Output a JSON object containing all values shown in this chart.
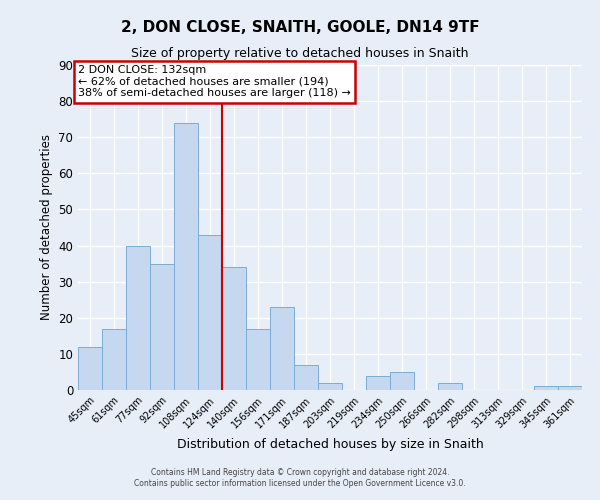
{
  "title": "2, DON CLOSE, SNAITH, GOOLE, DN14 9TF",
  "subtitle": "Size of property relative to detached houses in Snaith",
  "xlabel": "Distribution of detached houses by size in Snaith",
  "ylabel": "Number of detached properties",
  "categories": [
    "45sqm",
    "61sqm",
    "77sqm",
    "92sqm",
    "108sqm",
    "124sqm",
    "140sqm",
    "156sqm",
    "171sqm",
    "187sqm",
    "203sqm",
    "219sqm",
    "234sqm",
    "250sqm",
    "266sqm",
    "282sqm",
    "298sqm",
    "313sqm",
    "329sqm",
    "345sqm",
    "361sqm"
  ],
  "values": [
    12,
    17,
    40,
    35,
    74,
    43,
    34,
    17,
    23,
    7,
    2,
    0,
    4,
    5,
    0,
    2,
    0,
    0,
    0,
    1,
    1
  ],
  "bar_color": "#c5d8f0",
  "bar_edge_color": "#7aadd4",
  "bg_color": "#e8eef8",
  "grid_color": "#ffffff",
  "vline_color": "#cc0000",
  "annotation_title": "2 DON CLOSE: 132sqm",
  "annotation_line1": "← 62% of detached houses are smaller (194)",
  "annotation_line2": "38% of semi-detached houses are larger (118) →",
  "annotation_box_color": "#cc0000",
  "ylim": [
    0,
    90
  ],
  "yticks": [
    0,
    10,
    20,
    30,
    40,
    50,
    60,
    70,
    80,
    90
  ],
  "footer1": "Contains HM Land Registry data © Crown copyright and database right 2024.",
  "footer2": "Contains public sector information licensed under the Open Government Licence v3.0."
}
